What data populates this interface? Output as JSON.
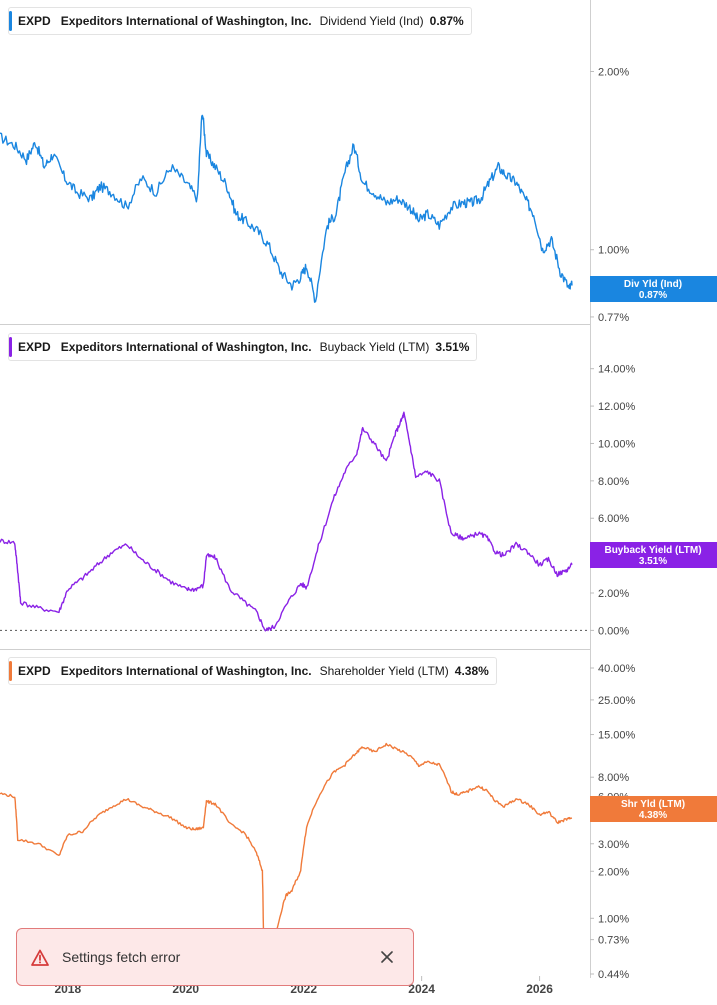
{
  "colors": {
    "dividend": "#1a86e0",
    "buyback": "#8a22e6",
    "shareholder": "#f07a3a"
  },
  "chart_data": [
    {
      "type": "line",
      "scale": "log",
      "legend": {
        "ticker": "EXPD",
        "company": "Expeditors International of Washington, Inc.",
        "metric": "Dividend Yield (Ind)",
        "value": "0.87%"
      },
      "x_range": [
        2016.85,
        2026.55
      ],
      "ylim": [
        0.755,
        2.35
      ],
      "ticks": [
        {
          "label": "2.00%",
          "v": 2.0
        },
        {
          "label": "1.00%",
          "v": 1.0
        },
        {
          "label": "0.77%",
          "v": 0.77
        }
      ],
      "last_badge": {
        "name": "Div Yld (Ind)",
        "value": "0.87%"
      },
      "series": [
        {
          "x": [
            2016.85,
            2017.1,
            2017.3,
            2017.45,
            2017.6,
            2017.75,
            2017.95,
            2018.15,
            2018.4,
            2018.55,
            2018.75,
            2019.0,
            2019.25,
            2019.5,
            2019.75,
            2020.0,
            2020.2,
            2020.28,
            2020.35,
            2020.5,
            2020.7,
            2020.85,
            2021.0,
            2021.2,
            2021.4,
            2021.6,
            2021.8,
            2021.95,
            2022.05,
            2022.2,
            2022.4,
            2022.55,
            2022.7,
            2022.85,
            2023.0,
            2023.2,
            2023.4,
            2023.6,
            2023.8,
            2023.95,
            2024.1,
            2024.3,
            2024.5,
            2024.7,
            2024.85,
            2025.0,
            2025.15,
            2025.3,
            2025.45,
            2025.6,
            2025.75,
            2025.9,
            2026.05,
            2026.2,
            2026.35,
            2026.5,
            2026.55
          ],
          "y": [
            1.55,
            1.5,
            1.42,
            1.52,
            1.38,
            1.45,
            1.32,
            1.25,
            1.22,
            1.28,
            1.25,
            1.18,
            1.32,
            1.25,
            1.38,
            1.3,
            1.22,
            1.72,
            1.45,
            1.38,
            1.28,
            1.15,
            1.12,
            1.08,
            1.02,
            0.92,
            0.87,
            0.9,
            0.94,
            0.82,
            1.1,
            1.15,
            1.35,
            1.5,
            1.3,
            1.25,
            1.2,
            1.22,
            1.18,
            1.12,
            1.15,
            1.1,
            1.18,
            1.2,
            1.2,
            1.22,
            1.3,
            1.38,
            1.33,
            1.3,
            1.22,
            1.15,
            1.0,
            1.04,
            0.92,
            0.86,
            0.87
          ]
        }
      ]
    },
    {
      "type": "line",
      "scale": "linear",
      "legend": {
        "ticker": "EXPD",
        "company": "Expeditors International of Washington, Inc.",
        "metric": "Buyback Yield (LTM)",
        "value": "3.51%"
      },
      "x_range": [
        2016.85,
        2026.55
      ],
      "ylim": [
        -0.3,
        15.0
      ],
      "ticks": [
        {
          "label": "14.00%",
          "v": 14
        },
        {
          "label": "12.00%",
          "v": 12
        },
        {
          "label": "10.00%",
          "v": 10
        },
        {
          "label": "8.00%",
          "v": 8
        },
        {
          "label": "6.00%",
          "v": 6
        },
        {
          "label": "4.00%",
          "v": 4
        },
        {
          "label": "2.00%",
          "v": 2
        },
        {
          "label": "0.00%",
          "v": 0
        }
      ],
      "zero_line": 0,
      "last_badge": {
        "name": "Buyback Yield (LTM)",
        "value": "3.51%"
      },
      "series": [
        {
          "x": [
            2016.85,
            2017.1,
            2017.15,
            2017.2,
            2017.5,
            2017.85,
            2018.0,
            2018.25,
            2018.5,
            2018.75,
            2019.0,
            2019.25,
            2019.5,
            2019.75,
            2020.0,
            2020.15,
            2020.3,
            2020.35,
            2020.5,
            2020.75,
            2021.0,
            2021.2,
            2021.35,
            2021.5,
            2021.75,
            2021.95,
            2022.05,
            2022.25,
            2022.5,
            2022.7,
            2022.9,
            2023.0,
            2023.2,
            2023.4,
            2023.55,
            2023.65,
            2023.7,
            2023.8,
            2023.9,
            2024.1,
            2024.3,
            2024.5,
            2024.65,
            2024.75,
            2024.95,
            2025.1,
            2025.25,
            2025.4,
            2025.6,
            2025.8,
            2026.0,
            2026.15,
            2026.3,
            2026.45,
            2026.55
          ],
          "y": [
            4.8,
            4.7,
            3.2,
            1.5,
            1.2,
            1.0,
            2.2,
            2.8,
            3.5,
            4.2,
            4.6,
            3.8,
            3.2,
            2.6,
            2.2,
            2.2,
            2.4,
            4.0,
            3.9,
            2.2,
            1.5,
            1.0,
            0.0,
            0.2,
            1.6,
            2.5,
            2.3,
            4.5,
            7.0,
            8.5,
            9.5,
            10.8,
            10.0,
            9.0,
            10.5,
            11.2,
            11.6,
            10.0,
            8.2,
            8.5,
            8.0,
            5.2,
            5.0,
            4.9,
            5.2,
            5.0,
            4.2,
            4.0,
            4.6,
            4.2,
            3.5,
            3.8,
            3.0,
            3.2,
            3.51
          ]
        }
      ]
    },
    {
      "type": "line",
      "scale": "log",
      "legend": {
        "ticker": "EXPD",
        "company": "Expeditors International of Washington, Inc.",
        "metric": "Shareholder Yield (LTM)",
        "value": "4.38%"
      },
      "x_range": [
        2016.85,
        2026.55
      ],
      "ylim": [
        0.44,
        40.0
      ],
      "ticks": [
        {
          "label": "40.00%",
          "v": 40
        },
        {
          "label": "25.00%",
          "v": 25
        },
        {
          "label": "15.00%",
          "v": 15
        },
        {
          "label": "8.00%",
          "v": 8
        },
        {
          "label": "6.00%",
          "v": 6
        },
        {
          "label": "3.00%",
          "v": 3
        },
        {
          "label": "2.00%",
          "v": 2
        },
        {
          "label": "1.00%",
          "v": 1
        },
        {
          "label": "0.73%",
          "v": 0.73
        },
        {
          "label": "0.44%",
          "v": 0.44
        }
      ],
      "x_ticks": [
        "2018",
        "2020",
        "2022",
        "2024",
        "2026"
      ],
      "x_tick_values": [
        2018,
        2020,
        2022,
        2024,
        2026
      ],
      "last_badge": {
        "name": "Shr Yld (LTM)",
        "value": "4.38%"
      },
      "series": [
        {
          "x": [
            2016.85,
            2017.1,
            2017.15,
            2017.5,
            2017.85,
            2018.0,
            2018.25,
            2018.5,
            2018.75,
            2019.0,
            2019.25,
            2019.5,
            2019.75,
            2020.0,
            2020.15,
            2020.3,
            2020.35,
            2020.5,
            2020.75,
            2021.0,
            2021.2,
            2021.3,
            2021.32,
            2021.45,
            2021.55,
            2021.7,
            2021.8,
            2021.95,
            2022.05,
            2022.25,
            2022.5,
            2022.7,
            2022.9,
            2023.0,
            2023.2,
            2023.4,
            2023.6,
            2023.8,
            2023.95,
            2024.1,
            2024.3,
            2024.5,
            2024.6,
            2024.75,
            2024.95,
            2025.1,
            2025.25,
            2025.4,
            2025.6,
            2025.8,
            2026.0,
            2026.15,
            2026.3,
            2026.45,
            2026.55
          ],
          "y": [
            6.3,
            6.0,
            3.2,
            3.0,
            2.5,
            3.4,
            3.6,
            4.5,
            5.2,
            5.8,
            5.2,
            4.8,
            4.4,
            3.8,
            3.7,
            3.8,
            5.6,
            5.4,
            4.0,
            3.5,
            2.6,
            2.0,
            0.6,
            0.8,
            0.85,
            1.4,
            1.5,
            2.0,
            3.8,
            6.0,
            8.5,
            9.6,
            11.5,
            12.5,
            11.6,
            13.0,
            12.0,
            11.0,
            9.5,
            10.0,
            9.6,
            6.5,
            6.2,
            6.4,
            7.0,
            6.6,
            5.6,
            5.2,
            5.8,
            5.4,
            4.6,
            4.8,
            4.1,
            4.3,
            4.38
          ]
        }
      ]
    }
  ],
  "toast": {
    "message": "Settings fetch error"
  }
}
